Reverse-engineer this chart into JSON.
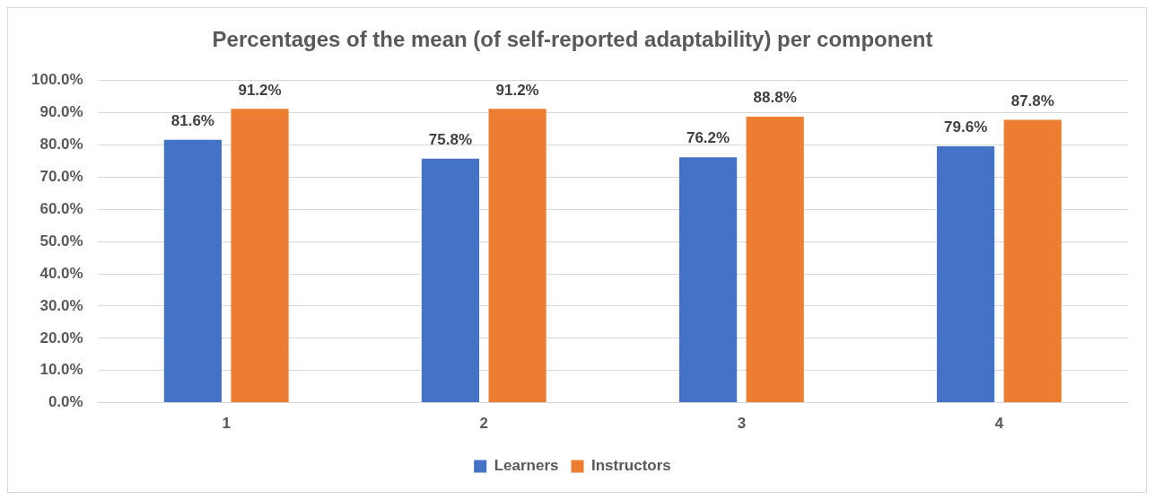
{
  "chart_data": {
    "type": "bar",
    "title": "Percentages of the mean (of self-reported adaptability) per component",
    "categories": [
      "1",
      "2",
      "3",
      "4"
    ],
    "series": [
      {
        "name": "Learners",
        "color": "#4472c4",
        "values": [
          81.6,
          75.8,
          76.2,
          79.6
        ],
        "value_labels": [
          "81.6%",
          "75.8%",
          "76.2%",
          "79.6%"
        ]
      },
      {
        "name": "Instructors",
        "color": "#ed7d31",
        "values": [
          91.2,
          91.2,
          88.8,
          87.8
        ],
        "value_labels": [
          "91.2%",
          "91.2%",
          "88.8%",
          "87.8%"
        ]
      }
    ],
    "ylim": [
      0,
      100
    ],
    "yticks": [
      {
        "value": 0,
        "label": "0.0%"
      },
      {
        "value": 10,
        "label": "10.0%"
      },
      {
        "value": 20,
        "label": "20.0%"
      },
      {
        "value": 30,
        "label": "30.0%"
      },
      {
        "value": 40,
        "label": "40.0%"
      },
      {
        "value": 50,
        "label": "50.0%"
      },
      {
        "value": 60,
        "label": "60.0%"
      },
      {
        "value": 70,
        "label": "70.0%"
      },
      {
        "value": 80,
        "label": "80.0%"
      },
      {
        "value": 90,
        "label": "90.0%"
      },
      {
        "value": 100,
        "label": "100.0%"
      }
    ],
    "grid": "y",
    "legend": "bottom"
  }
}
